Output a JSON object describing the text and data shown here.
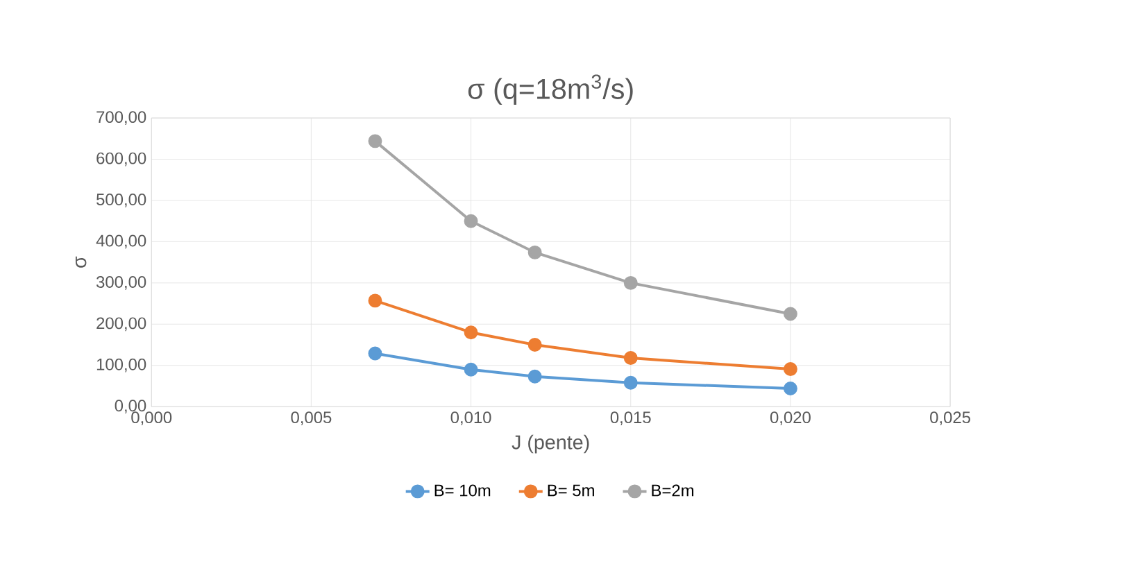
{
  "chart_data": {
    "type": "line",
    "title": "σ (q=18m$^{3}$/s)",
    "xlabel": "J (pente)",
    "ylabel": "σ",
    "x": [
      0.007,
      0.01,
      0.012,
      0.015,
      0.02
    ],
    "series": [
      {
        "name": "B= 10m",
        "color": "#5b9bd5",
        "values": [
          129,
          90,
          73,
          58,
          44
        ]
      },
      {
        "name": "B= 5m",
        "color": "#ed7d31",
        "values": [
          257,
          180,
          150,
          118,
          91
        ]
      },
      {
        "name": "B=2m",
        "color": "#a5a5a5",
        "values": [
          644,
          450,
          374,
          300,
          225
        ]
      }
    ],
    "xlim": [
      0,
      0.025
    ],
    "xticks": [
      {
        "value": 0,
        "label": "0,000"
      },
      {
        "value": 0.005,
        "label": "0,005"
      },
      {
        "value": 0.01,
        "label": "0,010"
      },
      {
        "value": 0.015,
        "label": "0,015"
      },
      {
        "value": 0.02,
        "label": "0,020"
      },
      {
        "value": 0.025,
        "label": "0,025"
      }
    ],
    "ylim": [
      0,
      700
    ],
    "yticks": [
      {
        "value": 0,
        "label": "0,00"
      },
      {
        "value": 100,
        "label": "100,00"
      },
      {
        "value": 200,
        "label": "200,00"
      },
      {
        "value": 300,
        "label": "300,00"
      },
      {
        "value": 400,
        "label": "400,00"
      },
      {
        "value": 500,
        "label": "500,00"
      },
      {
        "value": 600,
        "label": "600,00"
      },
      {
        "value": 700,
        "label": "700,00"
      }
    ],
    "grid": true,
    "legend": "bottom",
    "marker": "circle",
    "line_style": "solid"
  }
}
